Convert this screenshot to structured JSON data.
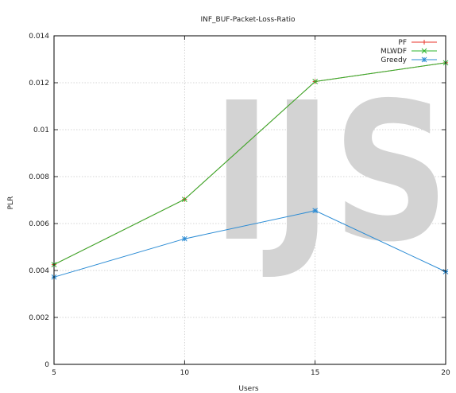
{
  "chart_data": {
    "type": "line",
    "title": "INF_BUF-Packet-Loss-Ratio",
    "xlabel": "Users",
    "ylabel": "PLR",
    "x": [
      5,
      10,
      15,
      20
    ],
    "xticks": [
      5,
      10,
      15,
      20
    ],
    "xlim": [
      5,
      20
    ],
    "yticks": [
      0,
      0.002,
      0.004,
      0.006,
      0.008,
      0.01,
      0.012,
      0.014
    ],
    "ytick_labels": [
      "0",
      "0.002",
      "0.004",
      "0.006",
      "0.008",
      "0.01",
      "0.012",
      "0.014"
    ],
    "ylim": [
      0,
      0.014
    ],
    "grid": true,
    "legend_position": "top-right",
    "series": [
      {
        "name": "PF",
        "color": "#e8332a",
        "marker": "plus",
        "values": [
          0.00425,
          0.00703,
          0.01205,
          0.01285
        ]
      },
      {
        "name": "MLWDF",
        "color": "#2db52d",
        "marker": "cross",
        "values": [
          0.00425,
          0.00703,
          0.01205,
          0.01285
        ]
      },
      {
        "name": "Greedy",
        "color": "#2a8bd4",
        "marker": "star",
        "values": [
          0.00372,
          0.00535,
          0.00655,
          0.00395
        ]
      }
    ],
    "watermark": "IJS"
  }
}
